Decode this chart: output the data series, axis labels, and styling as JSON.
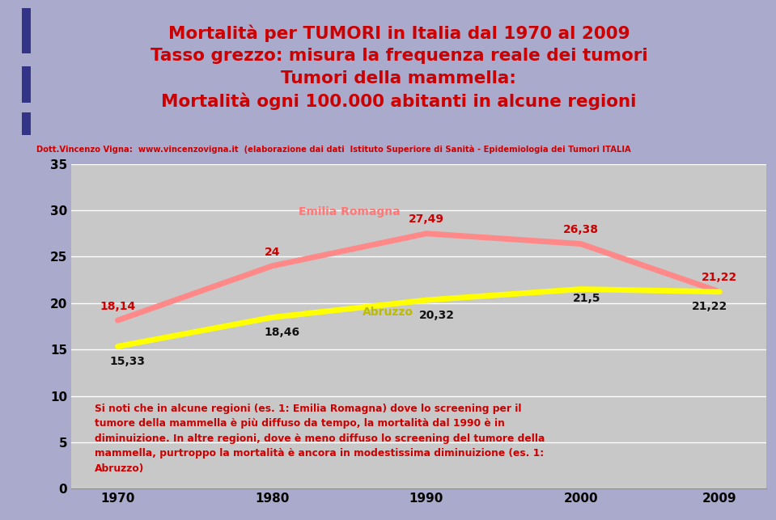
{
  "title_line1": "Mortalità per TUMORI in Italia dal 1970 al 2009",
  "title_line2": "Tasso grezzo: misura la frequenza reale dei tumori",
  "title_line3": "Tumori della mammella:",
  "title_line4": "Mortalità ogni 100.000 abitanti in alcune regioni",
  "title_color": "#cc0000",
  "header_bg": "#aaaacc",
  "subtitle_bg": "#ffff00",
  "subtitle_text": "Dott.Vincenzo Vigna:  www.vincenzovigna.it  (elaborazione dai dati  Istituto Superiore di Sanità - Epidemiologia dei Tumori ITALIA",
  "subtitle_color": "#cc0000",
  "chart_bg": "#c8c8c8",
  "years": [
    1970,
    1980,
    1990,
    2000,
    2009
  ],
  "emilia_values": [
    18.14,
    24.0,
    27.49,
    26.38,
    21.22
  ],
  "abruzzo_values": [
    15.33,
    18.46,
    20.32,
    21.5,
    21.22
  ],
  "emilia_display": [
    "18,14",
    "24",
    "27,49",
    "26,38",
    "21,22"
  ],
  "abruzzo_display": [
    "15,33",
    "18,46",
    "20,32",
    "21,5",
    "21,22"
  ],
  "emilia_color": "#ff8888",
  "abruzzo_color": "#ffff00",
  "emilia_label": "Emilia Romagna",
  "abruzzo_label": "Abruzzo",
  "emilia_label_color": "#ff7777",
  "abruzzo_label_color": "#bbbb00",
  "emilia_data_color": "#cc0000",
  "abruzzo_data_color": "#111111",
  "ylim": [
    0,
    35
  ],
  "yticks": [
    0,
    5,
    10,
    15,
    20,
    25,
    30,
    35
  ],
  "annotation_text": "Si noti che in alcune regioni (es. 1: Emilia Romagna) dove lo screening per il\ntumore della mammella è più diffuso da tempo, la mortalità dal 1990 è in\ndiminuizione. In altre regioni, dove è meno diffuso lo screening del tumore della\nmammella, purtroppo la mortalità è ancora in modestissima diminuizione (es. 1:\nAbruzzo)",
  "annotation_color": "#cc0000",
  "line_width": 5
}
